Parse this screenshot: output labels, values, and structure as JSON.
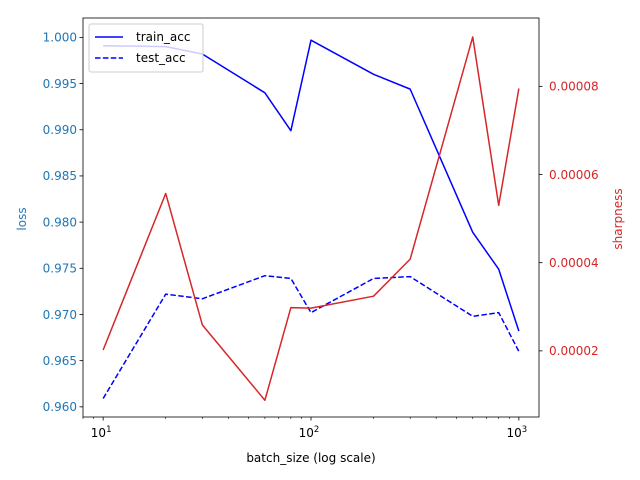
{
  "chart_data": {
    "type": "line",
    "xlabel": "batch_size (log scale)",
    "ylabel_left": "loss",
    "ylabel_right": "sharpness",
    "x_scale": "log",
    "xlim": [
      8,
      1250
    ],
    "ylim_left": [
      0.9589,
      1.0021
    ],
    "ylim_right": [
      5e-06,
      9.55e-05
    ],
    "x_ticks": [
      {
        "value": 10,
        "base": "10",
        "exp": "1"
      },
      {
        "value": 100,
        "base": "10",
        "exp": "2"
      },
      {
        "value": 1000,
        "base": "10",
        "exp": "3"
      }
    ],
    "y_ticks_left": [
      {
        "value": 0.96,
        "label": "0.960"
      },
      {
        "value": 0.965,
        "label": "0.965"
      },
      {
        "value": 0.97,
        "label": "0.970"
      },
      {
        "value": 0.975,
        "label": "0.975"
      },
      {
        "value": 0.98,
        "label": "0.980"
      },
      {
        "value": 0.985,
        "label": "0.985"
      },
      {
        "value": 0.99,
        "label": "0.990"
      },
      {
        "value": 0.995,
        "label": "0.995"
      },
      {
        "value": 1.0,
        "label": "1.000"
      }
    ],
    "y_ticks_right": [
      {
        "value": 2e-05,
        "label": "0.00002"
      },
      {
        "value": 4e-05,
        "label": "0.00004"
      },
      {
        "value": 6e-05,
        "label": "0.00006"
      },
      {
        "value": 8e-05,
        "label": "0.00008"
      }
    ],
    "grid": false,
    "legend_position": "top-left",
    "series": [
      {
        "name": "train_acc",
        "axis": "left",
        "color": "#0000ff",
        "style": "solid",
        "x": [
          10,
          20,
          30,
          60,
          80,
          100,
          200,
          300,
          600,
          800,
          1000
        ],
        "y": [
          0.9991,
          0.999,
          0.9982,
          0.994,
          0.9899,
          0.9997,
          0.996,
          0.9944,
          0.9789,
          0.9749,
          0.9682
        ]
      },
      {
        "name": "test_acc",
        "axis": "left",
        "color": "#0000ff",
        "style": "dashed",
        "x": [
          10,
          20,
          30,
          60,
          80,
          100,
          200,
          300,
          600,
          800,
          1000
        ],
        "y": [
          0.9609,
          0.9722,
          0.9717,
          0.9742,
          0.9739,
          0.9702,
          0.9739,
          0.9741,
          0.9698,
          0.9702,
          0.966
        ]
      },
      {
        "name": "",
        "axis": "right",
        "color": "#d62728",
        "style": "solid",
        "x": [
          10,
          20,
          30,
          60,
          80,
          100,
          200,
          300,
          600,
          800,
          1000
        ],
        "y": [
          2.02e-05,
          5.57e-05,
          2.59e-05,
          8.8e-06,
          2.98e-05,
          2.97e-05,
          3.24e-05,
          4.08e-05,
          9.12e-05,
          5.3e-05,
          7.95e-05
        ]
      }
    ],
    "colors": {
      "left_axis": "#1f77b4",
      "right_axis": "#d62728",
      "line_blue": "#0000ff",
      "line_red": "#d62728"
    }
  }
}
